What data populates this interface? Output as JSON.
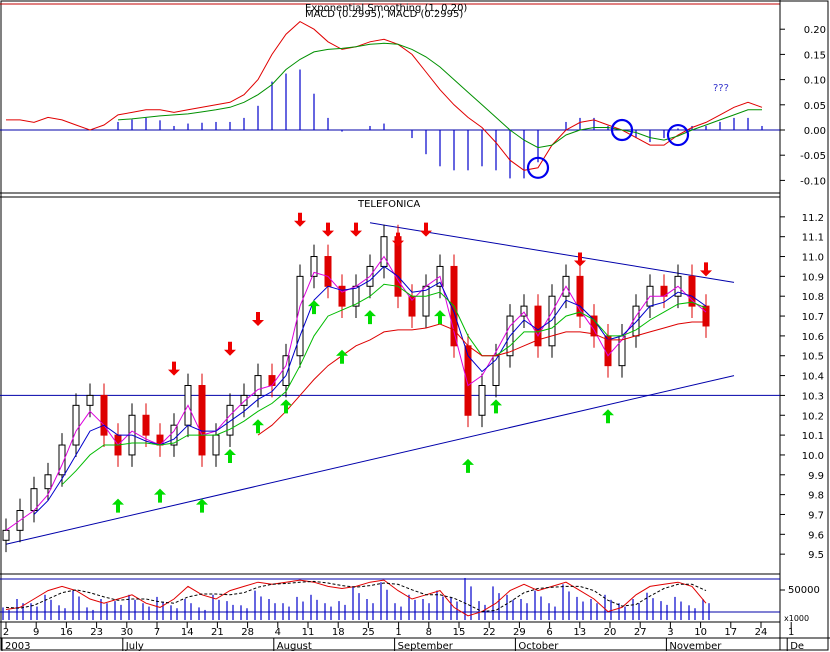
{
  "chart_data": [
    {
      "id": "macd",
      "type": "line",
      "title": "MACD (0.2995), MACD (0.2995)",
      "overlay_title": "Exponential Smoothing (1, 0.20)",
      "annotation": "???",
      "ylim": [
        -0.125,
        0.25
      ],
      "yticks": [
        "0.20",
        "0.15",
        "0.10",
        "0.05",
        "0.00",
        "-0.05",
        "-0.10"
      ],
      "ytick_values": [
        0.2,
        0.15,
        0.1,
        0.05,
        0.0,
        -0.05,
        -0.1
      ],
      "zero_line": 0.0,
      "series": [
        {
          "key": "macd",
          "color": "#e00000",
          "values": [
            0.02,
            0.02,
            0.015,
            0.025,
            0.02,
            0.01,
            0.0,
            0.01,
            0.03,
            0.035,
            0.04,
            0.04,
            0.035,
            0.04,
            0.045,
            0.05,
            0.055,
            0.07,
            0.1,
            0.15,
            0.19,
            0.215,
            0.2,
            0.175,
            0.16,
            0.165,
            0.175,
            0.18,
            0.17,
            0.15,
            0.115,
            0.08,
            0.05,
            0.025,
            0.005,
            -0.025,
            -0.06,
            -0.08,
            -0.075,
            -0.03,
            0.0,
            0.015,
            0.02,
            0.01,
            0.0,
            -0.015,
            -0.03,
            -0.03,
            -0.01,
            0.005,
            0.015,
            0.03,
            0.045,
            0.055,
            0.045
          ]
        },
        {
          "key": "signal",
          "color": "#009000",
          "values": [
            null,
            null,
            null,
            null,
            null,
            null,
            null,
            null,
            0.02,
            0.022,
            0.025,
            0.028,
            0.03,
            0.032,
            0.036,
            0.04,
            0.045,
            0.055,
            0.07,
            0.09,
            0.12,
            0.14,
            0.155,
            0.16,
            0.162,
            0.165,
            0.17,
            0.172,
            0.17,
            0.16,
            0.145,
            0.125,
            0.1,
            0.075,
            0.05,
            0.025,
            0.0,
            -0.02,
            -0.035,
            -0.03,
            -0.01,
            0.0,
            0.005,
            0.005,
            0.0,
            -0.005,
            -0.015,
            -0.02,
            -0.012,
            0.0,
            0.01,
            0.02,
            0.03,
            0.04,
            0.04
          ]
        }
      ],
      "histogram": {
        "color": "#0000cc",
        "values": [
          null,
          null,
          null,
          null,
          null,
          null,
          null,
          null,
          0.01,
          0.013,
          0.015,
          0.012,
          0.005,
          0.008,
          0.009,
          0.01,
          0.01,
          0.015,
          0.03,
          0.06,
          0.07,
          0.075,
          0.045,
          0.015,
          -0.002,
          0.0,
          0.005,
          0.008,
          0.0,
          -0.01,
          -0.03,
          -0.045,
          -0.05,
          -0.05,
          -0.045,
          -0.05,
          -0.06,
          -0.06,
          -0.04,
          0.0,
          0.01,
          0.015,
          0.015,
          0.005,
          0.0,
          -0.01,
          -0.015,
          -0.01,
          0.002,
          0.005,
          0.005,
          0.01,
          0.015,
          0.015,
          0.005
        ]
      },
      "circles_at_index": [
        38,
        44,
        48
      ]
    },
    {
      "id": "price",
      "type": "candlestick",
      "title": "TELEFONICA",
      "ylim": [
        9.4,
        11.3
      ],
      "yticks": [
        "11.2",
        "11.1",
        "11.0",
        "10.9",
        "10.8",
        "10.7",
        "10.6",
        "10.5",
        "10.4",
        "10.3",
        "10.2",
        "10.1",
        "10.0",
        "9.9",
        "9.8",
        "9.7",
        "9.6",
        "9.5"
      ],
      "ytick_values": [
        11.2,
        11.1,
        11.0,
        10.9,
        10.8,
        10.7,
        10.6,
        10.5,
        10.4,
        10.3,
        10.2,
        10.1,
        10.0,
        9.9,
        9.8,
        9.7,
        9.6,
        9.5
      ],
      "hline": 10.3,
      "closes": [
        9.62,
        9.72,
        9.83,
        9.9,
        10.05,
        10.25,
        10.3,
        10.1,
        10.0,
        10.2,
        10.1,
        10.05,
        10.15,
        10.35,
        10.0,
        10.1,
        10.25,
        10.3,
        10.4,
        10.35,
        10.5,
        10.9,
        11.0,
        10.85,
        10.75,
        10.85,
        10.95,
        11.1,
        10.8,
        10.7,
        10.85,
        10.95,
        10.55,
        10.2,
        10.35,
        10.5,
        10.7,
        10.75,
        10.55,
        10.8,
        10.9,
        10.7,
        10.6,
        10.45,
        10.6,
        10.75,
        10.85,
        10.8,
        10.9,
        10.75,
        10.65
      ],
      "series": [
        {
          "key": "ma_fast",
          "color": "#dd00dd",
          "values": [
            9.62,
            9.67,
            9.72,
            9.8,
            9.95,
            10.12,
            10.22,
            10.15,
            10.05,
            10.12,
            10.08,
            10.05,
            10.12,
            10.25,
            10.1,
            10.12,
            10.2,
            10.27,
            10.33,
            10.35,
            10.45,
            10.75,
            10.92,
            10.9,
            10.82,
            10.85,
            10.9,
            11.0,
            10.88,
            10.78,
            10.85,
            10.9,
            10.62,
            10.35,
            10.4,
            10.52,
            10.65,
            10.72,
            10.6,
            10.72,
            10.85,
            10.73,
            10.63,
            10.5,
            10.58,
            10.7,
            10.8,
            10.8,
            10.85,
            10.78,
            10.72
          ]
        },
        {
          "key": "ma_mid",
          "color": "#0000cc",
          "values": [
            null,
            null,
            9.7,
            9.77,
            9.88,
            10.0,
            10.12,
            10.15,
            10.1,
            10.1,
            10.07,
            10.05,
            10.08,
            10.15,
            10.12,
            10.12,
            10.17,
            10.22,
            10.28,
            10.32,
            10.4,
            10.6,
            10.78,
            10.85,
            10.83,
            10.84,
            10.88,
            10.95,
            10.9,
            10.82,
            10.83,
            10.87,
            10.72,
            10.5,
            10.42,
            10.48,
            10.6,
            10.68,
            10.63,
            10.68,
            10.78,
            10.75,
            10.68,
            10.58,
            10.6,
            10.67,
            10.75,
            10.77,
            10.82,
            10.8,
            10.75
          ]
        },
        {
          "key": "ma_slow",
          "color": "#00bb00",
          "values": [
            null,
            null,
            null,
            null,
            9.85,
            9.92,
            10.0,
            10.05,
            10.05,
            10.06,
            10.06,
            10.05,
            10.06,
            10.1,
            10.1,
            10.1,
            10.13,
            10.17,
            10.22,
            10.26,
            10.32,
            10.45,
            10.6,
            10.7,
            10.73,
            10.76,
            10.8,
            10.86,
            10.85,
            10.8,
            10.8,
            10.82,
            10.75,
            10.6,
            10.5,
            10.5,
            10.55,
            10.62,
            10.62,
            10.64,
            10.7,
            10.72,
            10.68,
            10.6,
            10.6,
            10.63,
            10.68,
            10.72,
            10.76,
            10.77,
            10.74
          ]
        },
        {
          "key": "ma_long",
          "color": "#dd0000",
          "values": [
            null,
            null,
            null,
            null,
            null,
            null,
            null,
            null,
            null,
            null,
            null,
            null,
            null,
            null,
            null,
            null,
            null,
            null,
            10.1,
            10.15,
            10.22,
            10.3,
            10.38,
            10.45,
            10.5,
            10.55,
            10.58,
            10.62,
            10.63,
            10.63,
            10.64,
            10.66,
            10.63,
            10.55,
            10.5,
            10.5,
            10.52,
            10.55,
            10.58,
            10.6,
            10.62,
            10.62,
            10.61,
            10.58,
            10.58,
            10.6,
            10.62,
            10.64,
            10.66,
            10.67,
            10.67
          ]
        }
      ],
      "down_arrows_at_index": [
        12,
        16,
        18,
        21,
        23,
        25,
        28,
        30,
        41,
        51
      ],
      "up_arrows_at_index": [
        8,
        11,
        14,
        16,
        18,
        20,
        22,
        24,
        26,
        31,
        33,
        35,
        43
      ],
      "upper_trendline": [
        [
          26,
          11.17
        ],
        [
          52,
          10.87
        ]
      ],
      "lower_trendline": [
        [
          0,
          9.55
        ],
        [
          52,
          10.4
        ]
      ]
    },
    {
      "id": "volume_stoch",
      "type": "bar",
      "ylabel_tick": "50000",
      "multiplier_label": "x1000",
      "volume_color": "#0000cc",
      "volume": [
        0.3,
        0.5,
        0.4,
        0.6,
        0.35,
        0.7,
        0.3,
        0.5,
        0.45,
        0.6,
        0.4,
        0.55,
        0.35,
        0.5,
        0.3,
        0.6,
        0.45,
        0.35,
        0.7,
        0.5,
        0.4,
        0.55,
        0.6,
        0.4,
        0.45,
        0.8,
        0.5,
        0.9,
        0.4,
        0.6,
        0.5,
        0.7,
        0.55,
        1.0,
        0.45,
        0.8,
        0.6,
        0.5,
        0.7,
        0.4,
        0.85,
        0.55,
        0.5,
        0.6,
        0.4,
        0.5,
        0.65,
        0.45,
        0.55,
        0.35,
        0.5
      ],
      "series": [
        {
          "key": "stoch_k",
          "color": "#e00000",
          "values": [
            0.25,
            0.3,
            0.5,
            0.7,
            0.8,
            0.7,
            0.5,
            0.4,
            0.5,
            0.6,
            0.4,
            0.3,
            0.5,
            0.8,
            0.6,
            0.5,
            0.7,
            0.8,
            0.9,
            0.85,
            0.9,
            0.95,
            0.9,
            0.8,
            0.75,
            0.8,
            0.9,
            0.95,
            0.7,
            0.5,
            0.6,
            0.7,
            0.3,
            0.1,
            0.2,
            0.4,
            0.7,
            0.85,
            0.7,
            0.8,
            0.9,
            0.7,
            0.5,
            0.2,
            0.3,
            0.6,
            0.8,
            0.85,
            0.9,
            0.8,
            0.4
          ]
        },
        {
          "key": "stoch_d",
          "color": "#000000",
          "dashed": true,
          "values": [
            0.3,
            0.28,
            0.35,
            0.5,
            0.65,
            0.72,
            0.65,
            0.55,
            0.47,
            0.5,
            0.5,
            0.43,
            0.4,
            0.55,
            0.62,
            0.62,
            0.6,
            0.65,
            0.78,
            0.85,
            0.87,
            0.9,
            0.92,
            0.88,
            0.82,
            0.78,
            0.82,
            0.88,
            0.85,
            0.72,
            0.6,
            0.6,
            0.52,
            0.37,
            0.2,
            0.23,
            0.43,
            0.65,
            0.75,
            0.78,
            0.8,
            0.8,
            0.7,
            0.47,
            0.33,
            0.37,
            0.57,
            0.75,
            0.85,
            0.85,
            0.7
          ]
        }
      ]
    }
  ],
  "x_axis": {
    "day_labels": [
      "2",
      "9",
      "16",
      "23",
      "30",
      "7",
      "14",
      "21",
      "28",
      "4",
      "11",
      "18",
      "25",
      "1",
      "8",
      "15",
      "22",
      "29",
      "6",
      "13",
      "20",
      "27",
      "3",
      "10",
      "17",
      "24",
      "1"
    ],
    "month_labels": [
      {
        "label": "2003",
        "at": 0
      },
      {
        "label": "July",
        "at": 4
      },
      {
        "label": "August",
        "at": 9
      },
      {
        "label": "September",
        "at": 13
      },
      {
        "label": "October",
        "at": 17
      },
      {
        "label": "November",
        "at": 22
      },
      {
        "label": "De",
        "at": 26
      }
    ]
  }
}
